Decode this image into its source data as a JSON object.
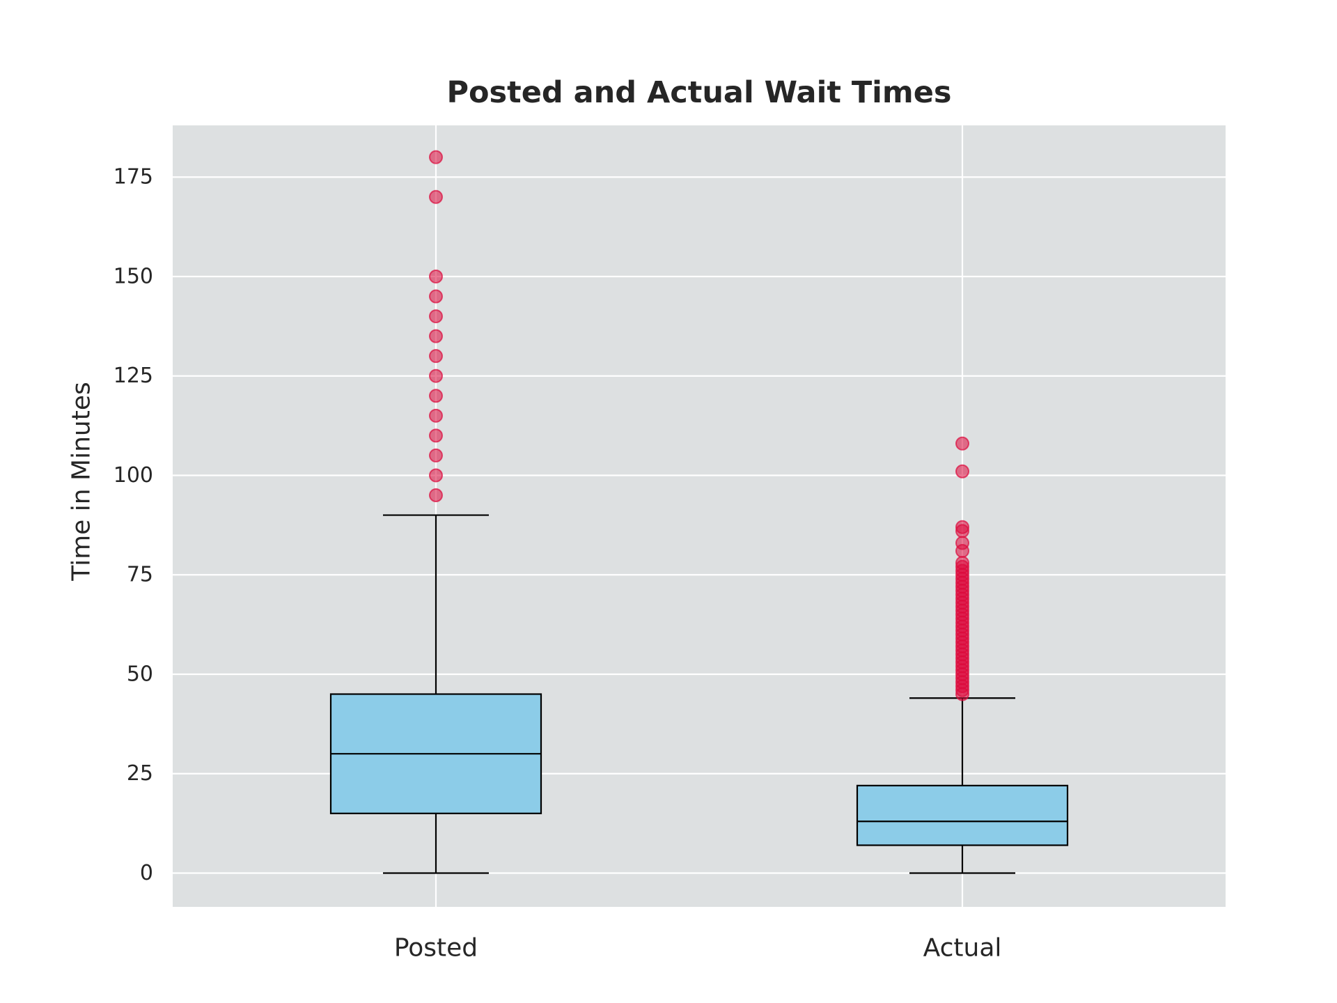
{
  "chart_data": {
    "type": "box",
    "title": "Posted and Actual Wait Times",
    "xlabel": "",
    "ylabel": "Time in Minutes",
    "ylim": [
      -8.5,
      188
    ],
    "yticks": [
      0,
      25,
      50,
      75,
      100,
      125,
      150,
      175
    ],
    "grid": true,
    "categories": [
      "Posted",
      "Actual"
    ],
    "boxes": [
      {
        "category": "Posted",
        "whisker_low": 0,
        "q1": 15,
        "median": 30,
        "q3": 45,
        "whisker_high": 90,
        "outliers": [
          95,
          100,
          105,
          110,
          115,
          120,
          125,
          130,
          135,
          140,
          145,
          150,
          170,
          180
        ]
      },
      {
        "category": "Actual",
        "whisker_low": 0,
        "q1": 7,
        "median": 13,
        "q3": 22,
        "whisker_high": 44,
        "outliers": [
          45,
          46,
          47,
          48,
          49,
          50,
          51,
          52,
          53,
          54,
          55,
          56,
          57,
          58,
          59,
          60,
          61,
          62,
          63,
          64,
          65,
          66,
          67,
          68,
          69,
          70,
          71,
          72,
          73,
          74,
          75,
          76,
          77,
          78,
          81,
          83,
          86,
          87,
          101,
          108
        ]
      }
    ],
    "colors": {
      "plot_background": "#dde0e1",
      "grid": "#ffffff",
      "box_fill": "#8ccce8",
      "box_edge": "#000000",
      "outlier": "#dc0a3c"
    }
  }
}
